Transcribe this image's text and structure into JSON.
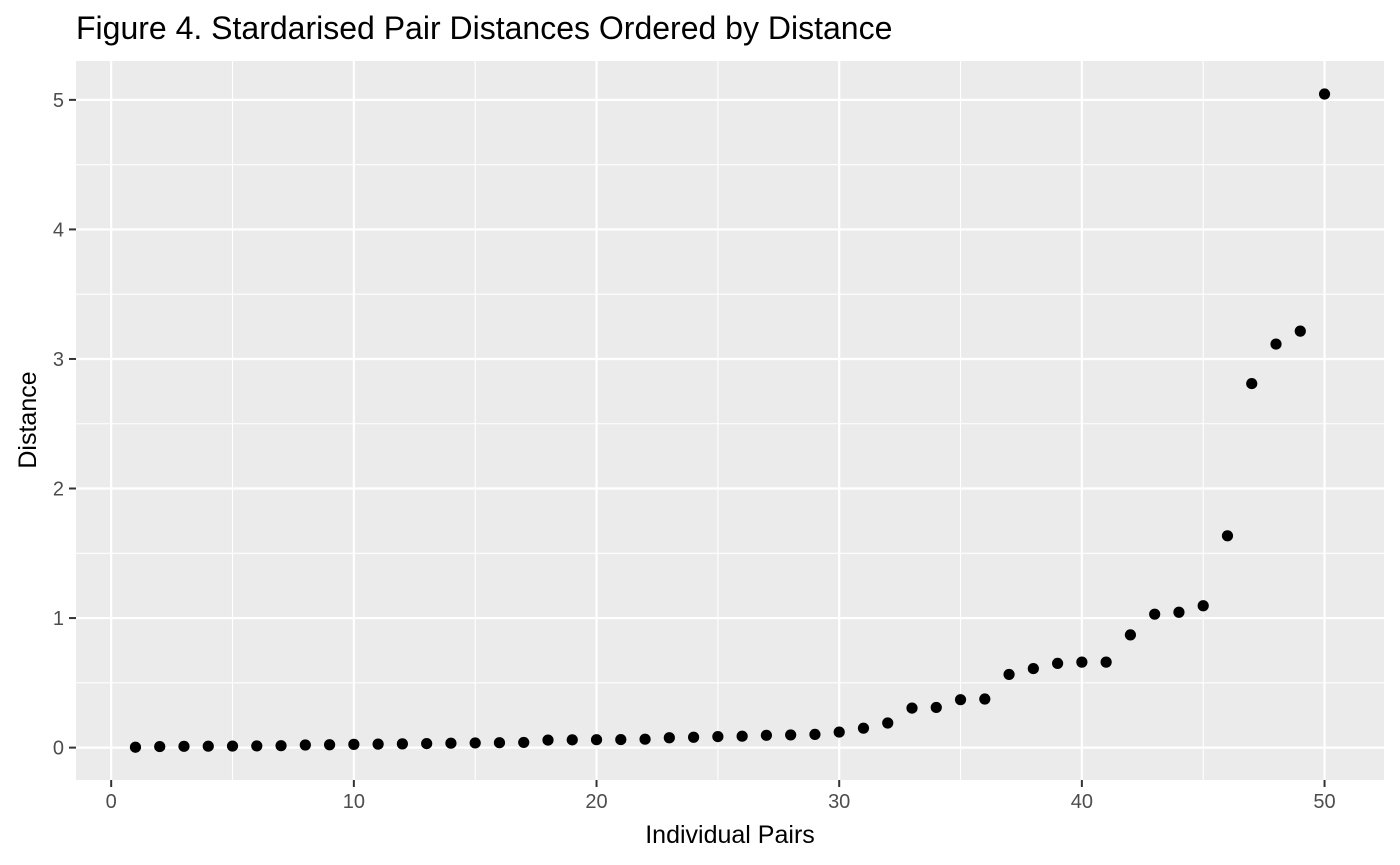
{
  "chart_data": {
    "type": "scatter",
    "title": "Figure 4. Stardarised Pair Distances Ordered by Distance",
    "xlabel": "Individual Pairs",
    "ylabel": "Distance",
    "xlim": [
      -1.45,
      52.45
    ],
    "ylim": [
      -0.25,
      5.3
    ],
    "x_ticks": [
      0,
      10,
      20,
      30,
      40,
      50
    ],
    "y_ticks": [
      0,
      1,
      2,
      3,
      4,
      5
    ],
    "x_tick_labels": [
      "0",
      "10",
      "20",
      "30",
      "40",
      "50"
    ],
    "y_tick_labels": [
      "0",
      "1",
      "2",
      "3",
      "4",
      "5"
    ],
    "x_minor": [
      5,
      15,
      25,
      35,
      45
    ],
    "y_minor": [
      0.5,
      1.5,
      2.5,
      3.5,
      4.5
    ],
    "grid": true,
    "legend": "none",
    "colors": {
      "panel": "#ebebeb",
      "grid": "#ffffff",
      "point": "#000000",
      "tick": "#333333"
    },
    "points": {
      "x": [
        1,
        2,
        3,
        4,
        5,
        6,
        7,
        8,
        9,
        10,
        11,
        12,
        13,
        14,
        15,
        16,
        17,
        18,
        19,
        20,
        21,
        22,
        23,
        24,
        25,
        26,
        27,
        28,
        29,
        30,
        31,
        32,
        33,
        34,
        35,
        36,
        37,
        38,
        39,
        40,
        41,
        42,
        43,
        44,
        45,
        46,
        47,
        48,
        49,
        50
      ],
      "y": [
        0.003,
        0.008,
        0.01,
        0.011,
        0.012,
        0.013,
        0.015,
        0.02,
        0.022,
        0.025,
        0.027,
        0.029,
        0.031,
        0.034,
        0.036,
        0.038,
        0.04,
        0.058,
        0.06,
        0.061,
        0.062,
        0.065,
        0.076,
        0.08,
        0.085,
        0.088,
        0.095,
        0.098,
        0.102,
        0.12,
        0.15,
        0.19,
        0.305,
        0.31,
        0.37,
        0.375,
        0.565,
        0.61,
        0.65,
        0.66,
        0.66,
        0.87,
        1.03,
        1.045,
        1.095,
        1.635,
        2.81,
        3.115,
        3.215,
        5.045
      ]
    }
  }
}
